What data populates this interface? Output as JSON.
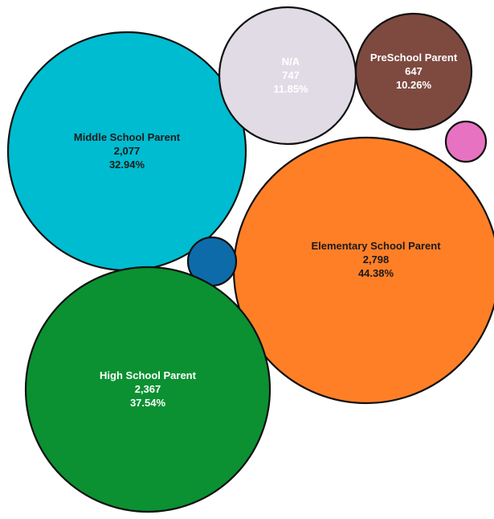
{
  "chart_data": {
    "type": "bubble",
    "title": "",
    "series": [
      {
        "label": "Middle School Parent",
        "count": "2,077",
        "percent": "32.94%",
        "value": 2077,
        "color": "#00BCD0",
        "text_color": "#1a1a1a"
      },
      {
        "label": "N/A",
        "count": "747",
        "percent": "11.85%",
        "value": 747,
        "color": "#E1DBE6",
        "text_color": "#ffffff"
      },
      {
        "label": "PreSchool Parent",
        "count": "647",
        "percent": "10.26%",
        "value": 647,
        "color": "#7E4A40",
        "text_color": "#ffffff"
      },
      {
        "label": "",
        "count": "",
        "percent": "",
        "value": 40,
        "color": "#E772C2",
        "text_color": "#1a1a1a"
      },
      {
        "label": "Elementary School Parent",
        "count": "2,798",
        "percent": "44.38%",
        "value": 2798,
        "color": "#FF7F27",
        "text_color": "#1a1a1a"
      },
      {
        "label": "",
        "count": "",
        "percent": "",
        "value": 55,
        "color": "#0E6BAA",
        "text_color": "#ffffff"
      },
      {
        "label": "High School Parent",
        "count": "2,367",
        "percent": "37.54%",
        "value": 2367,
        "color": "#0B9131",
        "text_color": "#ffffff"
      }
    ]
  }
}
